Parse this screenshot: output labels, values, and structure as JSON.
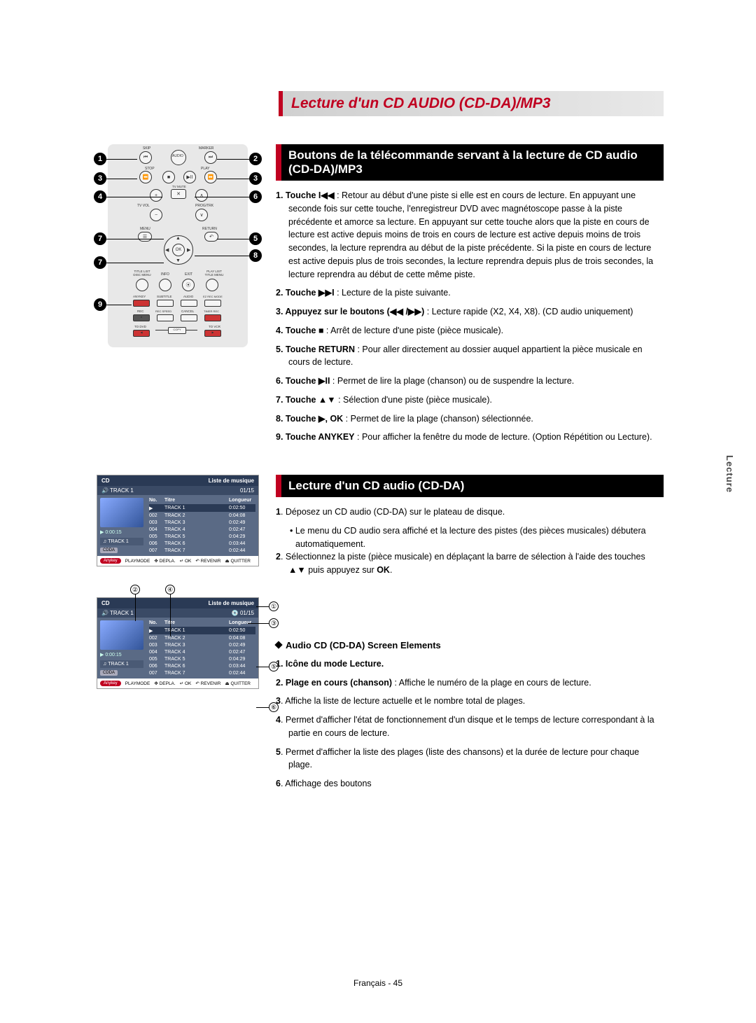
{
  "page": {
    "main_title": "Lecture d'un CD AUDIO (CD-DA)/MP3",
    "footer": "Français - 45",
    "side_tab": "Lecture"
  },
  "section1": {
    "heading": "Boutons de la télécommande servant à la lecture de CD audio (CD-DA)/MP3",
    "items": [
      {
        "num": "1.",
        "label": "Touche I◀◀",
        "text": " : Retour au début d'une piste si elle est en cours de lecture. En appuyant une seconde fois sur cette touche, l'enregistreur DVD avec magnétoscope passe à la piste précédente et amorce sa lecture. En appuyant sur cette touche alors que la piste en cours de lecture est active depuis moins de trois en cours de lecture est active depuis moins de trois secondes, la lecture reprendra au début de la piste précédente. Si la piste en cours de lecture est active depuis plus de trois secondes, la lecture reprendra depuis plus de trois secondes, la lecture reprendra au début de cette même piste."
      },
      {
        "num": "2.",
        "label": "Touche ▶▶I",
        "text": " : Lecture de la piste suivante."
      },
      {
        "num": "3.",
        "label": "Appuyez sur le boutons (◀◀ /▶▶)",
        "text": " : Lecture rapide (X2, X4, X8). (CD audio uniquement)"
      },
      {
        "num": "4.",
        "label": "Touche ■",
        "text": " : Arrêt de lecture d'une piste (pièce musicale)."
      },
      {
        "num": "5.",
        "label": "Touche RETURN",
        "text": " : Pour aller directement au dossier auquel appartient la pièce musicale en cours de lecture."
      },
      {
        "num": "6.",
        "label": "Touche ▶II",
        "text": " : Permet de lire la plage (chanson) ou de suspendre la lecture."
      },
      {
        "num": "7.",
        "label": "Touche ▲▼",
        "text": " : Sélection d'une piste (pièce musicale)."
      },
      {
        "num": "8.",
        "label": "Touche ▶, OK",
        "text": " : Permet de lire la plage (chanson) sélectionnée."
      },
      {
        "num": "9.",
        "label": "Touche ANYKEY",
        "text": " : Pour afficher la fenêtre du mode de lecture. (Option Répétition ou Lecture)."
      }
    ]
  },
  "section2": {
    "heading": "Lecture d'un CD audio (CD-DA)",
    "items": [
      {
        "num": "1",
        "text": ". Déposez un CD audio (CD-DA) sur le plateau de disque."
      },
      {
        "bullet": "• Le menu du CD audio sera affiché et la lecture des pistes (des pièces musicales) débutera automatiquement."
      },
      {
        "num": "2",
        "text": ". Sélectionnez la piste (pièce musicale) en déplaçant la barre de sélection à l'aide des touches ▲▼ puis appuyez sur ",
        "bold_end": "OK",
        "tail": "."
      }
    ]
  },
  "section3": {
    "sub_heading": "Audio CD (CD-DA) Screen Elements",
    "items": [
      {
        "num": "1.",
        "label": "Icône du mode Lecture.",
        "text": ""
      },
      {
        "num": "2.",
        "label": "Plage en cours (chanson)",
        "text": " : Affiche le numéro de la plage en cours de lecture."
      },
      {
        "num": "3",
        "text": ". Affiche la liste de lecture actuelle et le nombre total de plages."
      },
      {
        "num": "4",
        "text": ". Permet d'afficher l'état de fonctionnement d'un disque et le temps de lecture correspondant à la partie en cours de lecture."
      },
      {
        "num": "5",
        "text": ". Permet d'afficher la liste des plages (liste des chansons) et la durée de lecture pour chaque plage."
      },
      {
        "num": "6",
        "text": ". Affichage des boutons"
      }
    ]
  },
  "remote": {
    "labels": {
      "skip": "SKIP",
      "marker": "MARKER",
      "audio_top": "AUDIO",
      "stop": "STOP",
      "play": "PLAY",
      "tvvol": "TV VOL",
      "tvmute": "TV MUTE",
      "progtrk": "PROG/TRK",
      "menu": "MENU",
      "return": "RETURN",
      "ok": "OK",
      "titlelist": "TITLE LIST",
      "discmenu": "DISC MENU",
      "info": "INFO",
      "exit": "EXIT",
      "playlist": "PLAY LIST",
      "titlemenu": "TITLE MENU",
      "anykey": "ANYKEY",
      "subtitle": "SUBTITLE",
      "audio": "AUDIO",
      "ezrec": "EZ REC MODE",
      "rec": "REC",
      "recspeed": "REC SPEED",
      "cancel": "CANCEL",
      "timerrec": "TIMER REC",
      "todvd": "TO DVD",
      "copy": "COPY",
      "tovcr": "TO VCR"
    },
    "callouts": [
      "1",
      "2",
      "3",
      "3",
      "4",
      "6",
      "7",
      "5",
      "7",
      "8",
      "9"
    ]
  },
  "cd_screen": {
    "title_left": "CD",
    "title_right": "Liste de musique",
    "sub_left": "TRACK 1",
    "sub_right": "01/15",
    "time": "▶ 0:00:15",
    "label_icon": "♫",
    "label": "TRACK 1",
    "badge": "CDDA",
    "th_no": "No.",
    "th_titre": "Titre",
    "th_len": "Longueur",
    "rows": [
      {
        "no": "▶",
        "ti": "TRACK 1",
        "ln": "0:02:50",
        "hl": true
      },
      {
        "no": "002",
        "ti": "TRACK 2",
        "ln": "0:04:08"
      },
      {
        "no": "003",
        "ti": "TRACK 3",
        "ln": "0:02:49"
      },
      {
        "no": "004",
        "ti": "TRACK 4",
        "ln": "0:02:47"
      },
      {
        "no": "005",
        "ti": "TRACK 5",
        "ln": "0:04:29"
      },
      {
        "no": "006",
        "ti": "TRACK 6",
        "ln": "0:03:44"
      },
      {
        "no": "007",
        "ti": "TRACK 7",
        "ln": "0:02:44"
      }
    ],
    "footer": {
      "btn": "Anykey",
      "items": [
        "PLAYMODE",
        "✥ DEPLA.",
        "↵ OK",
        "↶ REVENIR",
        "⏏ QUITTER"
      ]
    }
  },
  "annotations2": [
    "①",
    "②",
    "③",
    "④",
    "⑤",
    "⑥"
  ]
}
